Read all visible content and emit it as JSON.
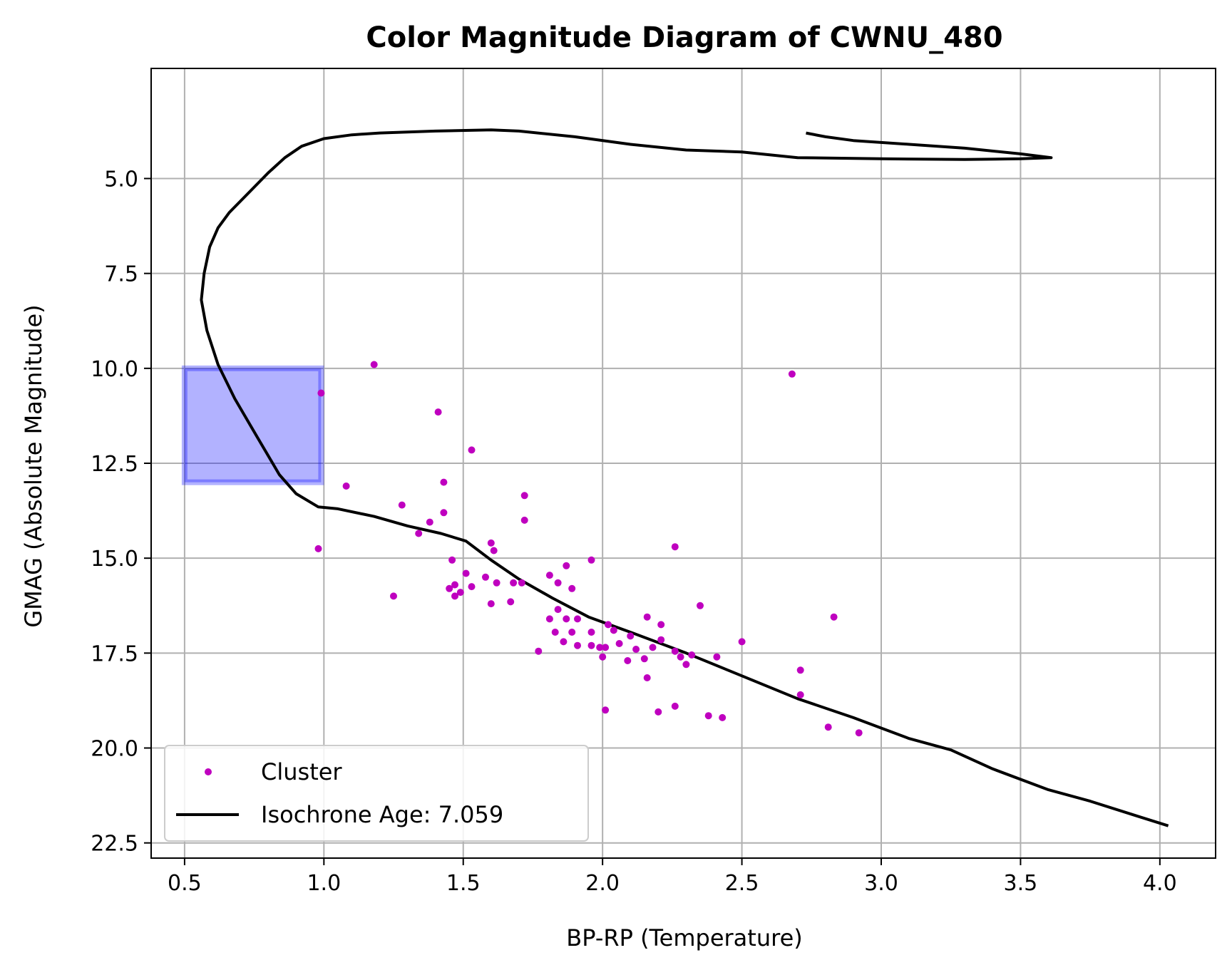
{
  "chart_data": {
    "type": "scatter",
    "title": "Color Magnitude Diagram of CWNU_480",
    "xlabel": "BP-RP (Temperature)",
    "ylabel": "GMAG (Absolute Magnitude)",
    "xlim": [
      0.38,
      4.2
    ],
    "ylim": [
      22.9,
      2.1
    ],
    "y_inverted": true,
    "grid": true,
    "legend_position": "lower-left",
    "x_ticks": [
      0.5,
      1.0,
      1.5,
      2.0,
      2.5,
      3.0,
      3.5,
      4.0
    ],
    "x_tick_labels": [
      "0.5",
      "1.0",
      "1.5",
      "2.0",
      "2.5",
      "3.0",
      "3.5",
      "4.0"
    ],
    "y_ticks": [
      5.0,
      7.5,
      10.0,
      12.5,
      15.0,
      17.5,
      20.0,
      22.5
    ],
    "y_tick_labels": [
      "5.0",
      "7.5",
      "10.0",
      "12.5",
      "15.0",
      "17.5",
      "20.0",
      "22.5"
    ],
    "colors": {
      "cluster": "#bf00bf",
      "isochrone": "#000000",
      "region_fill": "#0000ff",
      "grid": "#b0b0b0"
    },
    "highlight_region": {
      "x": [
        0.5,
        0.99
      ],
      "y": [
        10.0,
        13.0
      ]
    },
    "series": [
      {
        "name": "Cluster",
        "kind": "scatter",
        "points": [
          [
            1.18,
            9.9
          ],
          [
            2.68,
            10.15
          ],
          [
            0.99,
            10.65
          ],
          [
            1.41,
            11.15
          ],
          [
            1.53,
            12.15
          ],
          [
            1.43,
            13.0
          ],
          [
            1.08,
            13.1
          ],
          [
            1.72,
            13.35
          ],
          [
            1.28,
            13.6
          ],
          [
            1.43,
            13.8
          ],
          [
            1.38,
            14.05
          ],
          [
            1.72,
            14.0
          ],
          [
            1.34,
            14.35
          ],
          [
            0.98,
            14.75
          ],
          [
            1.6,
            14.6
          ],
          [
            1.61,
            14.8
          ],
          [
            2.26,
            14.7
          ],
          [
            1.46,
            15.05
          ],
          [
            1.96,
            15.05
          ],
          [
            1.87,
            15.2
          ],
          [
            1.51,
            15.4
          ],
          [
            1.81,
            15.45
          ],
          [
            1.58,
            15.5
          ],
          [
            1.47,
            15.7
          ],
          [
            1.53,
            15.75
          ],
          [
            1.45,
            15.8
          ],
          [
            1.62,
            15.65
          ],
          [
            1.68,
            15.65
          ],
          [
            1.71,
            15.65
          ],
          [
            1.84,
            15.65
          ],
          [
            1.89,
            15.8
          ],
          [
            1.47,
            16.0
          ],
          [
            1.49,
            15.9
          ],
          [
            1.25,
            16.0
          ],
          [
            1.6,
            16.2
          ],
          [
            1.67,
            16.15
          ],
          [
            2.35,
            16.25
          ],
          [
            1.84,
            16.35
          ],
          [
            1.81,
            16.6
          ],
          [
            1.87,
            16.6
          ],
          [
            1.91,
            16.6
          ],
          [
            2.16,
            16.55
          ],
          [
            2.83,
            16.55
          ],
          [
            2.02,
            16.75
          ],
          [
            2.21,
            16.75
          ],
          [
            1.83,
            16.95
          ],
          [
            1.89,
            16.95
          ],
          [
            1.96,
            16.95
          ],
          [
            2.04,
            16.9
          ],
          [
            2.1,
            17.05
          ],
          [
            1.86,
            17.2
          ],
          [
            1.91,
            17.3
          ],
          [
            1.96,
            17.3
          ],
          [
            1.99,
            17.35
          ],
          [
            2.01,
            17.35
          ],
          [
            2.06,
            17.25
          ],
          [
            2.12,
            17.4
          ],
          [
            2.18,
            17.35
          ],
          [
            2.21,
            17.15
          ],
          [
            2.5,
            17.2
          ],
          [
            1.77,
            17.45
          ],
          [
            2.0,
            17.6
          ],
          [
            2.09,
            17.7
          ],
          [
            2.15,
            17.65
          ],
          [
            2.26,
            17.45
          ],
          [
            2.28,
            17.6
          ],
          [
            2.3,
            17.8
          ],
          [
            2.32,
            17.55
          ],
          [
            2.41,
            17.6
          ],
          [
            2.71,
            17.95
          ],
          [
            2.16,
            18.15
          ],
          [
            2.71,
            18.6
          ],
          [
            2.26,
            18.9
          ],
          [
            2.01,
            19.0
          ],
          [
            2.2,
            19.05
          ],
          [
            2.38,
            19.15
          ],
          [
            2.43,
            19.2
          ],
          [
            2.81,
            19.45
          ],
          [
            2.92,
            19.6
          ]
        ]
      },
      {
        "name": "Isochrone Age: 7.059",
        "kind": "line",
        "points": [
          [
            2.73,
            3.8
          ],
          [
            2.8,
            3.9
          ],
          [
            2.9,
            4.0
          ],
          [
            3.1,
            4.1
          ],
          [
            3.3,
            4.2
          ],
          [
            3.5,
            4.35
          ],
          [
            3.61,
            4.45
          ],
          [
            3.5,
            4.48
          ],
          [
            3.3,
            4.5
          ],
          [
            3.0,
            4.48
          ],
          [
            2.7,
            4.45
          ],
          [
            2.5,
            4.3
          ],
          [
            2.3,
            4.25
          ],
          [
            2.1,
            4.1
          ],
          [
            1.9,
            3.9
          ],
          [
            1.7,
            3.75
          ],
          [
            1.6,
            3.72
          ],
          [
            1.4,
            3.75
          ],
          [
            1.2,
            3.8
          ],
          [
            1.1,
            3.85
          ],
          [
            1.0,
            3.95
          ],
          [
            0.92,
            4.15
          ],
          [
            0.86,
            4.45
          ],
          [
            0.8,
            4.85
          ],
          [
            0.74,
            5.3
          ],
          [
            0.66,
            5.9
          ],
          [
            0.62,
            6.3
          ],
          [
            0.59,
            6.8
          ],
          [
            0.57,
            7.5
          ],
          [
            0.56,
            8.2
          ],
          [
            0.58,
            9.0
          ],
          [
            0.62,
            9.9
          ],
          [
            0.68,
            10.8
          ],
          [
            0.76,
            11.8
          ],
          [
            0.84,
            12.8
          ],
          [
            0.9,
            13.3
          ],
          [
            0.98,
            13.65
          ],
          [
            1.05,
            13.7
          ],
          [
            1.18,
            13.9
          ],
          [
            1.3,
            14.15
          ],
          [
            1.42,
            14.35
          ],
          [
            1.51,
            14.55
          ],
          [
            1.6,
            15.05
          ],
          [
            1.7,
            15.55
          ],
          [
            1.82,
            16.05
          ],
          [
            1.95,
            16.55
          ],
          [
            2.1,
            16.95
          ],
          [
            2.3,
            17.5
          ],
          [
            2.5,
            18.1
          ],
          [
            2.7,
            18.7
          ],
          [
            2.9,
            19.2
          ],
          [
            3.1,
            19.75
          ],
          [
            3.25,
            20.05
          ],
          [
            3.4,
            20.55
          ],
          [
            3.6,
            21.1
          ],
          [
            3.75,
            21.4
          ],
          [
            3.9,
            21.75
          ],
          [
            4.03,
            22.05
          ]
        ]
      }
    ]
  }
}
